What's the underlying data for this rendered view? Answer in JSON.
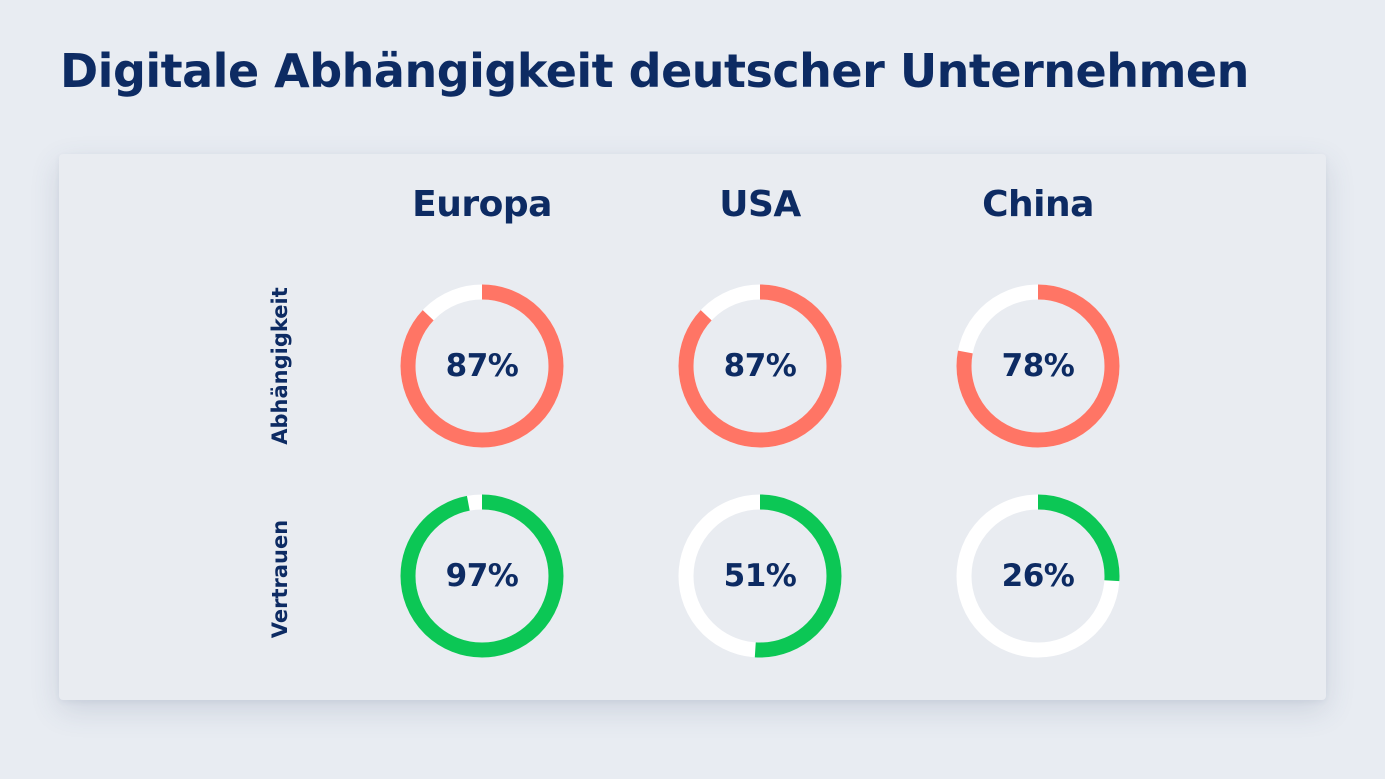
{
  "title": "Digitale Abhängigkeit deutscher Unternehmen",
  "colors": {
    "background": "#e8ecf2",
    "panel": "#e9ecf1",
    "text": "#0d2b63",
    "track": "#ffffff",
    "abhaengigkeit": "#ff7565",
    "vertrauen": "#0cc755"
  },
  "chart_data": {
    "type": "donut-grid",
    "title": "Digitale Abhängigkeit deutscher Unternehmen",
    "columns": [
      "Europa",
      "USA",
      "China"
    ],
    "rows": [
      "Abhängigkeit",
      "Vertrauen"
    ],
    "unit": "%",
    "series": [
      {
        "name": "Abhängigkeit",
        "color": "#ff7565",
        "values": [
          87,
          87,
          78
        ],
        "labels": [
          "87%",
          "87%",
          "78%"
        ]
      },
      {
        "name": "Vertrauen",
        "color": "#0cc755",
        "values": [
          97,
          51,
          26
        ],
        "labels": [
          "97%",
          "51%",
          "26%"
        ]
      }
    ]
  }
}
